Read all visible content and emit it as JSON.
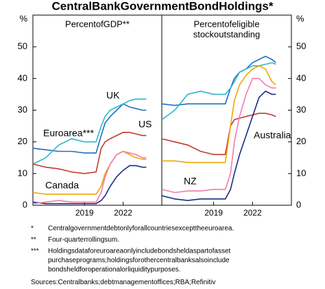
{
  "title": "CentralBankGovernmentBondHoldings*",
  "y_unit": "%",
  "chart_data": [
    {
      "type": "line",
      "title": [
        "PercentofGDP**"
      ],
      "x": [
        2015,
        2016,
        2017,
        2018,
        2019,
        2019.9,
        2020.3,
        2020.6,
        2021,
        2021.5,
        2022,
        2022.5,
        2023,
        2023.5,
        2023.8
      ],
      "xlim": [
        2015,
        2025
      ],
      "xticks": [
        2019,
        2022
      ],
      "ylim": [
        0,
        60
      ],
      "yticks": [
        0,
        10,
        20,
        30,
        40,
        50
      ],
      "series": [
        {
          "name": "UK",
          "color": "#1f6fb8",
          "values": [
            18,
            17.5,
            17,
            17,
            16.5,
            16.5,
            22,
            26,
            28,
            30,
            32,
            31,
            30.5,
            30,
            30
          ]
        },
        {
          "name": "Euroarea***",
          "color": "#2ab7c9",
          "values": [
            13,
            15,
            19,
            21,
            20,
            20,
            25,
            28,
            30,
            31,
            32,
            33,
            33.5,
            33.5,
            33.5
          ]
        },
        {
          "name": "US",
          "color": "#c0392b",
          "values": [
            13,
            12,
            11.5,
            10.5,
            10,
            10.5,
            18,
            20,
            21,
            22,
            23,
            23,
            22.5,
            22,
            22
          ]
        },
        {
          "name": "Canada",
          "color": "#f0a500",
          "values": [
            4,
            3.5,
            3.5,
            3.5,
            3.5,
            3.5,
            6,
            10,
            13,
            16,
            17,
            16,
            15,
            14.5,
            14.5
          ]
        },
        {
          "color": "#1a2a80",
          "values": [
            1,
            0.5,
            0.5,
            0.5,
            0.5,
            0.5,
            1.5,
            3,
            6,
            9,
            11,
            12.5,
            12.5,
            12,
            12
          ]
        },
        {
          "color": "#f07ab0",
          "values": [
            0.5,
            1,
            1.5,
            1,
            1,
            1,
            4,
            9,
            13,
            16,
            17,
            16.5,
            16,
            15,
            15
          ]
        }
      ]
    },
    {
      "type": "line",
      "title": [
        "Percentofeligible",
        "stockoutstanding"
      ],
      "x": [
        2015,
        2016,
        2017,
        2018,
        2019,
        2019.9,
        2020.3,
        2020.6,
        2021,
        2021.5,
        2022,
        2022.5,
        2023,
        2023.5,
        2023.8
      ],
      "xlim": [
        2015,
        2025
      ],
      "xticks": [
        2019,
        2022
      ],
      "ylim": [
        0,
        60
      ],
      "yticks": [
        0,
        10,
        20,
        30,
        40,
        50
      ],
      "series": [
        {
          "color": "#1f6fb8",
          "values": [
            32,
            31.5,
            32,
            32,
            32,
            32,
            37,
            40,
            42,
            43,
            45,
            46,
            47,
            46,
            45
          ]
        },
        {
          "color": "#2ab7c9",
          "values": [
            27,
            30,
            35,
            36,
            35,
            35,
            37,
            39,
            42,
            43,
            44,
            44,
            44.5,
            45,
            44.5
          ]
        },
        {
          "color": "#c0392b",
          "values": [
            21,
            20,
            19,
            17,
            16,
            16,
            25,
            27,
            27.5,
            28,
            28.5,
            29,
            29,
            28.5,
            28
          ]
        },
        {
          "color": "#f0a500",
          "values": [
            14,
            14,
            13.5,
            13.5,
            13.5,
            13.5,
            25,
            33,
            38,
            41,
            43,
            44,
            43,
            39,
            38
          ]
        },
        {
          "name": "Australia",
          "color": "#1a2a80",
          "values": [
            3,
            2,
            1.5,
            2,
            2,
            2,
            5,
            10,
            16,
            22,
            28,
            34,
            36,
            35,
            35
          ]
        },
        {
          "name": "NZ",
          "color": "#f07ab0",
          "values": [
            5,
            4,
            4.5,
            4.5,
            5,
            5,
            10,
            20,
            28,
            35,
            40,
            40,
            38,
            37,
            37
          ]
        }
      ]
    }
  ],
  "footnotes": [
    {
      "marker": "*",
      "lines": [
        "Centralgovernmentdebtonlyforallcountriesexcepttheeuroarea."
      ]
    },
    {
      "marker": "**",
      "lines": [
        "Four-quarterrollingsum."
      ]
    },
    {
      "marker": "***",
      "lines": [
        "Holdingsdataforeuroareaonlyincludebondsheldaspartofasset",
        "purchaseprograms;holdingsforothercentralbanksalsoinclude",
        "bondsheldforoperationalorliquiditypurposes."
      ]
    }
  ],
  "source": "Sources:Centralbanks;debtmanagementoffices;RBA;Refinitiv"
}
